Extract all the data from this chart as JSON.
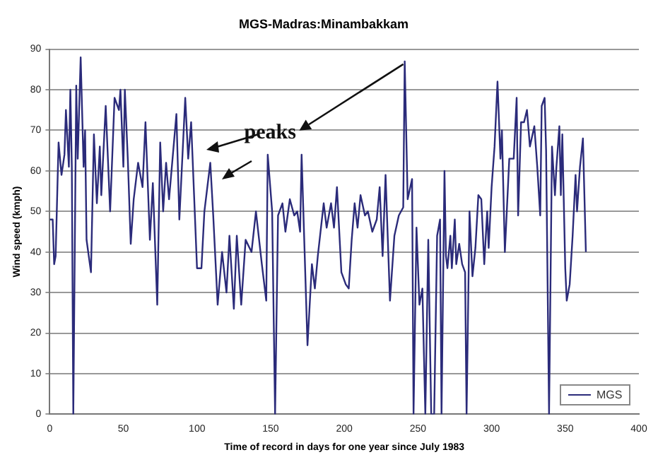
{
  "chart_data": {
    "type": "line",
    "title": "MGS-Madras:Minambakkam",
    "xlabel": "Time of record in days for one year since July 1983",
    "ylabel": "Wind speed (kmph)",
    "annotations": [
      {
        "text": "peaks",
        "x": 241,
        "y": 87
      }
    ],
    "x": [
      0,
      2,
      3,
      4,
      6,
      8,
      10,
      11,
      13,
      14,
      15,
      16,
      18,
      19,
      21,
      23,
      24,
      25,
      28,
      30,
      32,
      34,
      35,
      38,
      41,
      44,
      47,
      48,
      50,
      51,
      53,
      55,
      57,
      60,
      63,
      65,
      68,
      70,
      73,
      75,
      77,
      79,
      81,
      86,
      88,
      92,
      94,
      96,
      98,
      100,
      103,
      105,
      109,
      111,
      114,
      117,
      120,
      122,
      125,
      127,
      130,
      133,
      137,
      140,
      144,
      147,
      148,
      151,
      153,
      155,
      158,
      160,
      163,
      166,
      168,
      170,
      171,
      175,
      178,
      180,
      182,
      186,
      188,
      191,
      193,
      195,
      198,
      201,
      203,
      205,
      207,
      209,
      211,
      214,
      216,
      219,
      222,
      224,
      226,
      228,
      231,
      234,
      237,
      240,
      241,
      243,
      246,
      247,
      249,
      251,
      253,
      255,
      257,
      259,
      261,
      263,
      265,
      266,
      268,
      269,
      270,
      272,
      273,
      275,
      276,
      278,
      280,
      282,
      283,
      285,
      287,
      289,
      291,
      293,
      295,
      297,
      298,
      300,
      302,
      304,
      306,
      307,
      309,
      312,
      315,
      317,
      318,
      320,
      322,
      324,
      326,
      329,
      331,
      333,
      334,
      336,
      337,
      339,
      341,
      343,
      344,
      346,
      347,
      348,
      350,
      351,
      353,
      355,
      357,
      358,
      360,
      362,
      364
    ],
    "series": [
      {
        "name": "MGS",
        "color": "#2b2b7a",
        "values": [
          48,
          48,
          37,
          39,
          67,
          59,
          64,
          75,
          61,
          80,
          61,
          0,
          81,
          63,
          88,
          61,
          70,
          43,
          35,
          69,
          52,
          66,
          54,
          76,
          50,
          78,
          75,
          80,
          61,
          80,
          63,
          42,
          53,
          62,
          56,
          72,
          43,
          57,
          27,
          67,
          50,
          62,
          53,
          74,
          48,
          78,
          63,
          72,
          54,
          36,
          36,
          50,
          62,
          49,
          27,
          40,
          30,
          44,
          26,
          44,
          27,
          43,
          40,
          50,
          37,
          28,
          64,
          50,
          0,
          49,
          52,
          45,
          53,
          49,
          50,
          45,
          64,
          17,
          37,
          31,
          39,
          52,
          46,
          52,
          46,
          56,
          35,
          32,
          31,
          43,
          52,
          46,
          54,
          49,
          50,
          45,
          48,
          56,
          39,
          59,
          28,
          44,
          49,
          51,
          87,
          53,
          58,
          0,
          46,
          27,
          31,
          0,
          43,
          0,
          0,
          44,
          48,
          0,
          60,
          39,
          36,
          44,
          36,
          48,
          37,
          42,
          37,
          35,
          0,
          50,
          34,
          41,
          54,
          53,
          37,
          50,
          41,
          56,
          66,
          82,
          63,
          70,
          40,
          63,
          63,
          78,
          49,
          72,
          72,
          75,
          66,
          71,
          61,
          49,
          76,
          78,
          65,
          0,
          66,
          54,
          61,
          71,
          54,
          69,
          36,
          28,
          32,
          44,
          59,
          50,
          61,
          68,
          40
        ]
      }
    ],
    "xlim": [
      0,
      400
    ],
    "xticks": [
      0,
      50,
      100,
      150,
      200,
      250,
      300,
      350,
      400
    ],
    "ylim": [
      0,
      90
    ],
    "yticks": [
      0,
      10,
      20,
      30,
      40,
      50,
      60,
      70,
      80,
      90
    ],
    "grid": "y",
    "legend": "bottom right",
    "marker": "none"
  }
}
